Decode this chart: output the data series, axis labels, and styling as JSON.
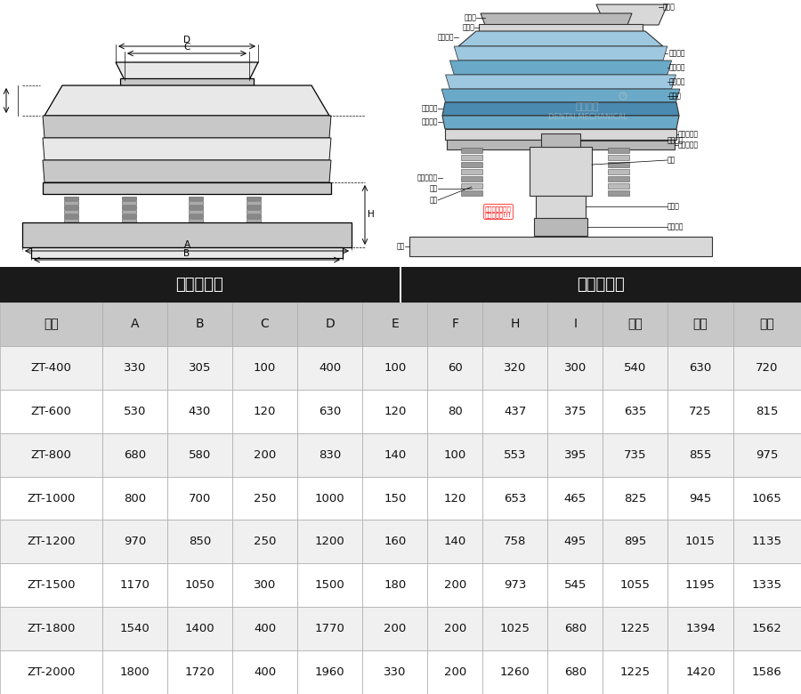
{
  "section1_title": "外形尺寸图",
  "section2_title": "一般結構图",
  "col_headers": [
    "型号",
    "A",
    "B",
    "C",
    "D",
    "E",
    "F",
    "H",
    "I",
    "一層",
    "二層",
    "三層"
  ],
  "rows": [
    [
      "ZT-400",
      "330",
      "305",
      "100",
      "400",
      "100",
      "60",
      "320",
      "300",
      "540",
      "630",
      "720"
    ],
    [
      "ZT-600",
      "530",
      "430",
      "120",
      "630",
      "120",
      "80",
      "437",
      "375",
      "635",
      "725",
      "815"
    ],
    [
      "ZT-800",
      "680",
      "580",
      "200",
      "830",
      "140",
      "100",
      "553",
      "395",
      "735",
      "855",
      "975"
    ],
    [
      "ZT-1000",
      "800",
      "700",
      "250",
      "1000",
      "150",
      "120",
      "653",
      "465",
      "825",
      "945",
      "1065"
    ],
    [
      "ZT-1200",
      "970",
      "850",
      "250",
      "1200",
      "160",
      "140",
      "758",
      "495",
      "895",
      "1015",
      "1135"
    ],
    [
      "ZT-1500",
      "1170",
      "1050",
      "300",
      "1500",
      "180",
      "200",
      "973",
      "545",
      "1055",
      "1195",
      "1335"
    ],
    [
      "ZT-1800",
      "1540",
      "1400",
      "400",
      "1770",
      "200",
      "200",
      "1025",
      "680",
      "1225",
      "1394",
      "1562"
    ],
    [
      "ZT-2000",
      "1800",
      "1720",
      "400",
      "1960",
      "330",
      "200",
      "1260",
      "680",
      "1225",
      "1420",
      "1586"
    ]
  ],
  "header_bg": "#c8c8c8",
  "border_color": "#999999",
  "header_text_color": "#111111",
  "row_text_color": "#111111",
  "section_bg": "#1e1e1e",
  "section_text": "#ffffff",
  "row_bg_alt": "#f0f0f0",
  "row_bg_white": "#ffffff"
}
